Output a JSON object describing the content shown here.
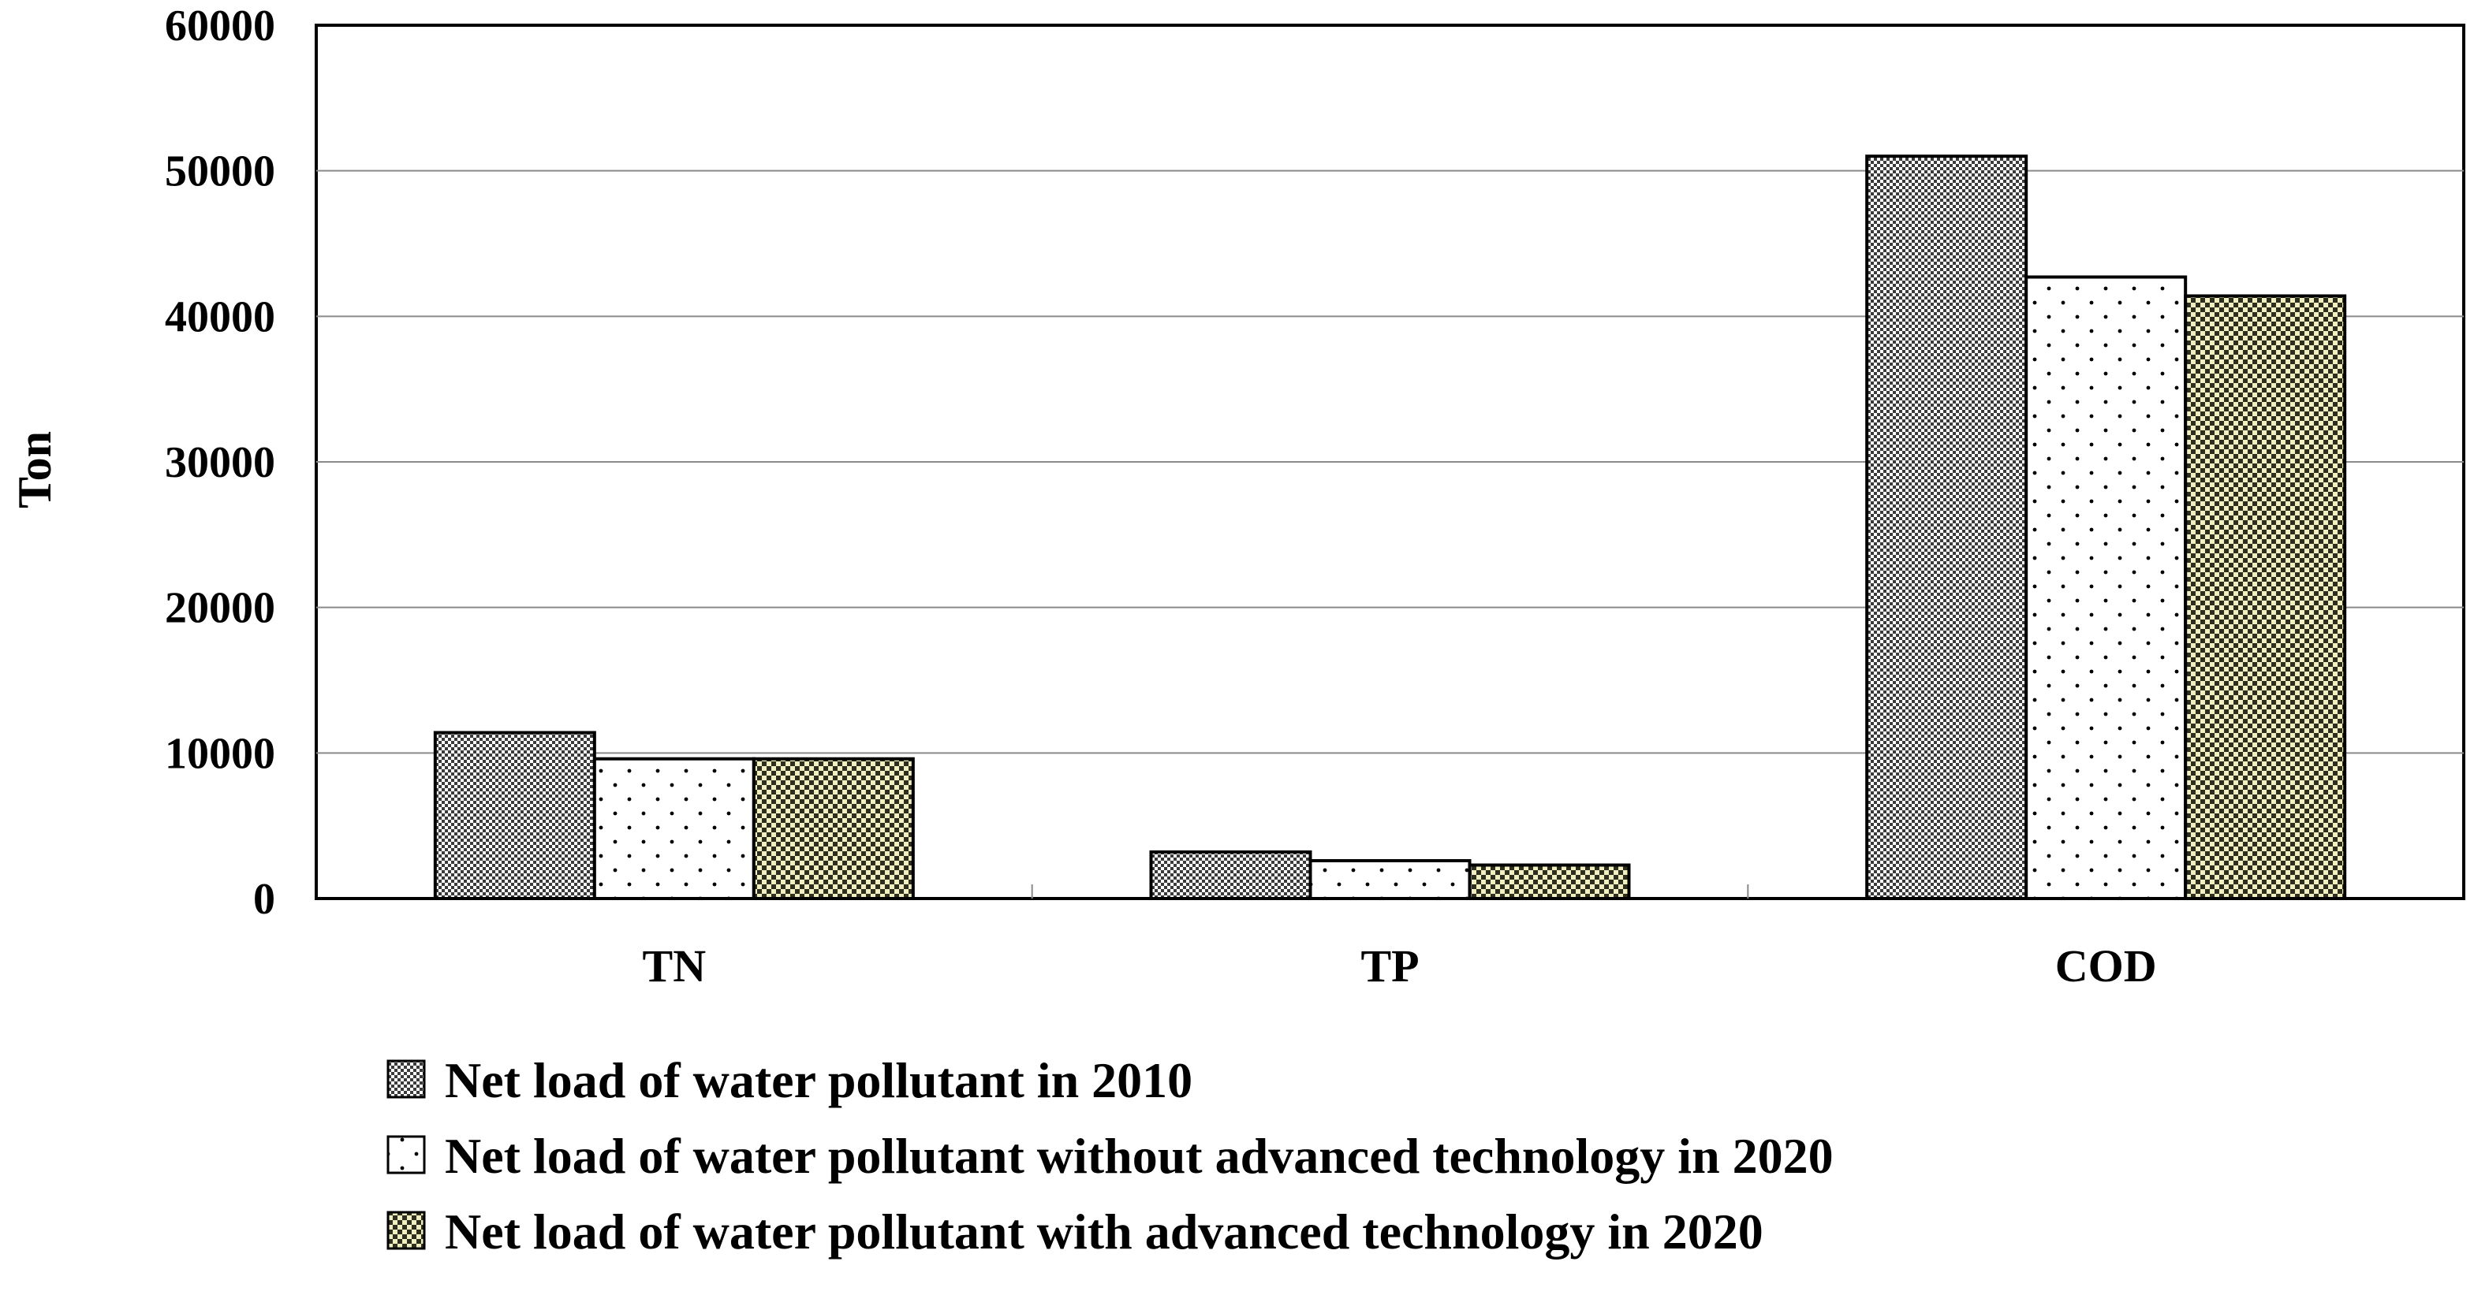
{
  "chart_data": {
    "type": "bar",
    "title": "",
    "xlabel": "",
    "ylabel": "Ton",
    "ylim": [
      0,
      60000
    ],
    "yticks": [
      0,
      10000,
      20000,
      30000,
      40000,
      50000,
      60000
    ],
    "ytick_labels": [
      "0",
      "10000",
      "20000",
      "30000",
      "40000",
      "50000",
      "60000"
    ],
    "grid": true,
    "legend_position": "bottom",
    "categories": [
      "TN",
      "TP",
      "COD"
    ],
    "series": [
      {
        "name": "Net load of water pollutant in 2010",
        "values": [
          11400,
          3200,
          51000
        ],
        "pattern": "checker-dense",
        "color": "#707070"
      },
      {
        "name": "Net load of water pollutant without advanced technology in 2020",
        "values": [
          9600,
          2600,
          42700
        ],
        "pattern": "dots",
        "color": "#ffffff"
      },
      {
        "name": "Net load of water pollutant with advanced technology in 2020",
        "values": [
          9600,
          2300,
          41400
        ],
        "pattern": "checker-yellow",
        "color": "#e8e6b0"
      }
    ]
  }
}
